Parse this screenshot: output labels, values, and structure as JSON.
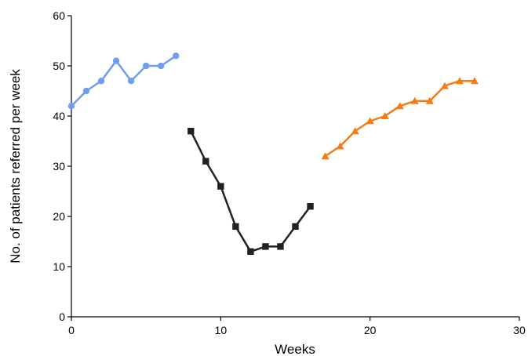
{
  "chart_data": {
    "type": "line",
    "title": "",
    "xlabel": "Weeks",
    "ylabel": "No. of patients referred per week",
    "xlim": [
      0,
      30
    ],
    "ylim": [
      0,
      60
    ],
    "xticks": [
      0,
      10,
      20,
      30
    ],
    "yticks": [
      0,
      10,
      20,
      30,
      40,
      50,
      60
    ],
    "grid": false,
    "legend": "none",
    "series": [
      {
        "marker": "circle",
        "color": "#6f9ef0",
        "x": [
          0,
          1,
          2,
          3,
          4,
          5,
          6,
          7
        ],
        "y": [
          42,
          45,
          47,
          51,
          47,
          50,
          50,
          52
        ]
      },
      {
        "marker": "square",
        "color": "#222222",
        "x": [
          8,
          9,
          10,
          11,
          12,
          13,
          14,
          15,
          16
        ],
        "y": [
          37,
          31,
          26,
          18,
          13,
          14,
          14,
          18,
          22
        ]
      },
      {
        "marker": "triangle",
        "color": "#f57c14",
        "x": [
          17,
          18,
          19,
          20,
          21,
          22,
          23,
          24,
          25,
          26,
          27
        ],
        "y": [
          32,
          34,
          37,
          39,
          40,
          42,
          43,
          43,
          46,
          47,
          47
        ]
      }
    ]
  }
}
